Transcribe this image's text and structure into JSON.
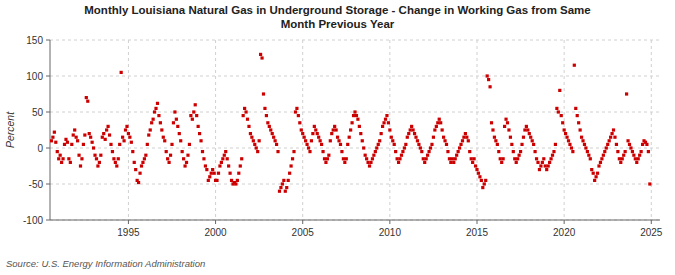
{
  "chart_data": {
    "type": "scatter",
    "title": "Monthly Louisiana Natural Gas in Underground Storage - Change in Working Gas from Same\nMonth Previous Year",
    "y_label": "Percent",
    "source": "Source: U.S. Energy Information Administration",
    "color": "#cc0000",
    "marker": "square",
    "grid": true,
    "xlim": [
      1990.5,
      2025.5
    ],
    "xticks": [
      1995,
      2000,
      2005,
      2010,
      2015,
      2020,
      2025
    ],
    "ylim": [
      -100,
      150
    ],
    "yticks": [
      -100,
      -50,
      0,
      50,
      100,
      150
    ],
    "x": [
      1990.583,
      1990.667,
      1990.75,
      1990.833,
      1990.917,
      1991.0,
      1991.083,
      1991.167,
      1991.25,
      1991.333,
      1991.417,
      1991.5,
      1991.583,
      1991.667,
      1991.75,
      1991.833,
      1991.917,
      1992.0,
      1992.083,
      1992.167,
      1992.25,
      1992.333,
      1992.417,
      1992.5,
      1992.583,
      1992.667,
      1992.75,
      1992.833,
      1992.917,
      1993.0,
      1993.083,
      1993.167,
      1993.25,
      1993.333,
      1993.417,
      1993.5,
      1993.583,
      1993.667,
      1993.75,
      1993.833,
      1993.917,
      1994.0,
      1994.083,
      1994.167,
      1994.25,
      1994.333,
      1994.417,
      1994.5,
      1994.583,
      1994.667,
      1994.75,
      1994.833,
      1994.917,
      1995.0,
      1995.083,
      1995.167,
      1995.25,
      1995.333,
      1995.417,
      1995.5,
      1995.583,
      1995.667,
      1995.75,
      1995.833,
      1995.917,
      1996.0,
      1996.083,
      1996.167,
      1996.25,
      1996.333,
      1996.417,
      1996.5,
      1996.583,
      1996.667,
      1996.75,
      1996.833,
      1996.917,
      1997.0,
      1997.083,
      1997.167,
      1997.25,
      1997.333,
      1997.417,
      1997.5,
      1997.583,
      1997.667,
      1997.75,
      1997.833,
      1997.917,
      1998.0,
      1998.083,
      1998.167,
      1998.25,
      1998.333,
      1998.417,
      1998.5,
      1998.583,
      1998.667,
      1998.75,
      1998.833,
      1998.917,
      1999.0,
      1999.083,
      1999.167,
      1999.25,
      1999.333,
      1999.417,
      1999.5,
      1999.583,
      1999.667,
      1999.75,
      1999.833,
      1999.917,
      2000.0,
      2000.083,
      2000.167,
      2000.25,
      2000.333,
      2000.417,
      2000.5,
      2000.583,
      2000.667,
      2000.75,
      2000.833,
      2000.917,
      2001.0,
      2001.083,
      2001.167,
      2001.25,
      2001.333,
      2001.417,
      2001.5,
      2001.583,
      2001.667,
      2001.75,
      2001.833,
      2001.917,
      2002.0,
      2002.083,
      2002.167,
      2002.25,
      2002.333,
      2002.417,
      2002.5,
      2002.583,
      2002.667,
      2002.75,
      2002.833,
      2002.917,
      2003.0,
      2003.083,
      2003.167,
      2003.25,
      2003.333,
      2003.417,
      2003.5,
      2003.583,
      2003.667,
      2003.75,
      2003.833,
      2003.917,
      2004.0,
      2004.083,
      2004.167,
      2004.25,
      2004.333,
      2004.417,
      2004.5,
      2004.583,
      2004.667,
      2004.75,
      2004.833,
      2004.917,
      2005.0,
      2005.083,
      2005.167,
      2005.25,
      2005.333,
      2005.417,
      2005.5,
      2005.583,
      2005.667,
      2005.75,
      2005.833,
      2005.917,
      2006.0,
      2006.083,
      2006.167,
      2006.25,
      2006.333,
      2006.417,
      2006.5,
      2006.583,
      2006.667,
      2006.75,
      2006.833,
      2006.917,
      2007.0,
      2007.083,
      2007.167,
      2007.25,
      2007.333,
      2007.417,
      2007.5,
      2007.583,
      2007.667,
      2007.75,
      2007.833,
      2007.917,
      2008.0,
      2008.083,
      2008.167,
      2008.25,
      2008.333,
      2008.417,
      2008.5,
      2008.583,
      2008.667,
      2008.75,
      2008.833,
      2008.917,
      2009.0,
      2009.083,
      2009.167,
      2009.25,
      2009.333,
      2009.417,
      2009.5,
      2009.583,
      2009.667,
      2009.75,
      2009.833,
      2009.917,
      2010.0,
      2010.083,
      2010.167,
      2010.25,
      2010.333,
      2010.417,
      2010.5,
      2010.583,
      2010.667,
      2010.75,
      2010.833,
      2010.917,
      2011.0,
      2011.083,
      2011.167,
      2011.25,
      2011.333,
      2011.417,
      2011.5,
      2011.583,
      2011.667,
      2011.75,
      2011.833,
      2011.917,
      2012.0,
      2012.083,
      2012.167,
      2012.25,
      2012.333,
      2012.417,
      2012.5,
      2012.583,
      2012.667,
      2012.75,
      2012.833,
      2012.917,
      2013.0,
      2013.083,
      2013.167,
      2013.25,
      2013.333,
      2013.417,
      2013.5,
      2013.583,
      2013.667,
      2013.75,
      2013.833,
      2013.917,
      2014.0,
      2014.083,
      2014.167,
      2014.25,
      2014.333,
      2014.417,
      2014.5,
      2014.583,
      2014.667,
      2014.75,
      2014.833,
      2014.917,
      2015.0,
      2015.083,
      2015.167,
      2015.25,
      2015.333,
      2015.417,
      2015.5,
      2015.583,
      2015.667,
      2015.75,
      2015.833,
      2015.917,
      2016.0,
      2016.083,
      2016.167,
      2016.25,
      2016.333,
      2016.417,
      2016.5,
      2016.583,
      2016.667,
      2016.75,
      2016.833,
      2016.917,
      2017.0,
      2017.083,
      2017.167,
      2017.25,
      2017.333,
      2017.417,
      2017.5,
      2017.583,
      2017.667,
      2017.75,
      2017.833,
      2017.917,
      2018.0,
      2018.083,
      2018.167,
      2018.25,
      2018.333,
      2018.417,
      2018.5,
      2018.583,
      2018.667,
      2018.75,
      2018.833,
      2018.917,
      2019.0,
      2019.083,
      2019.167,
      2019.25,
      2019.333,
      2019.417,
      2019.5,
      2019.583,
      2019.667,
      2019.75,
      2019.833,
      2019.917,
      2020.0,
      2020.083,
      2020.167,
      2020.25,
      2020.333,
      2020.417,
      2020.5,
      2020.583,
      2020.667,
      2020.75,
      2020.833,
      2020.917,
      2021.0,
      2021.083,
      2021.167,
      2021.25,
      2021.333,
      2021.417,
      2021.5,
      2021.583,
      2021.667,
      2021.75,
      2021.833,
      2021.917,
      2022.0,
      2022.083,
      2022.167,
      2022.25,
      2022.333,
      2022.417,
      2022.5,
      2022.583,
      2022.667,
      2022.75,
      2022.833,
      2022.917,
      2023.0,
      2023.083,
      2023.167,
      2023.25,
      2023.333,
      2023.417,
      2023.5,
      2023.583,
      2023.667,
      2023.75,
      2023.833,
      2023.917,
      2024.0,
      2024.083,
      2024.167,
      2024.25,
      2024.333,
      2024.417,
      2024.5,
      2024.583,
      2024.667,
      2024.75,
      2024.833,
      2024.917
    ],
    "values": [
      10,
      15,
      22,
      8,
      -5,
      -15,
      -10,
      -20,
      -15,
      5,
      12,
      8,
      -15,
      -20,
      5,
      18,
      25,
      15,
      10,
      -10,
      -25,
      -15,
      5,
      18,
      70,
      65,
      20,
      15,
      8,
      0,
      -10,
      -15,
      -25,
      -20,
      -10,
      15,
      20,
      12,
      25,
      30,
      18,
      5,
      -5,
      -15,
      -20,
      -25,
      -15,
      5,
      105,
      15,
      10,
      25,
      30,
      20,
      15,
      8,
      -5,
      -20,
      -30,
      -45,
      -48,
      -35,
      -25,
      -20,
      -15,
      -10,
      5,
      18,
      25,
      35,
      40,
      50,
      55,
      62,
      45,
      35,
      25,
      15,
      10,
      -5,
      -15,
      -20,
      -10,
      5,
      35,
      50,
      40,
      30,
      20,
      10,
      -5,
      -15,
      -25,
      -20,
      -10,
      5,
      45,
      40,
      50,
      60,
      45,
      30,
      20,
      10,
      -5,
      -15,
      -25,
      -30,
      -45,
      -40,
      -35,
      -30,
      -35,
      -45,
      -45,
      -35,
      -25,
      -20,
      -15,
      -10,
      -5,
      -15,
      -25,
      -35,
      -45,
      -50,
      -48,
      -50,
      -45,
      -35,
      -25,
      -15,
      45,
      55,
      50,
      40,
      30,
      20,
      15,
      10,
      5,
      0,
      -5,
      10,
      130,
      125,
      75,
      55,
      45,
      35,
      30,
      25,
      20,
      15,
      10,
      5,
      -5,
      -60,
      -55,
      -50,
      -45,
      -60,
      -55,
      -45,
      -35,
      -25,
      -15,
      -5,
      50,
      55,
      45,
      35,
      25,
      20,
      15,
      10,
      5,
      0,
      -5,
      10,
      20,
      30,
      25,
      20,
      15,
      10,
      5,
      -5,
      -15,
      -20,
      -15,
      -10,
      10,
      20,
      25,
      30,
      25,
      15,
      10,
      5,
      -5,
      -15,
      -20,
      -15,
      5,
      15,
      25,
      35,
      45,
      50,
      45,
      40,
      30,
      20,
      10,
      0,
      -10,
      -15,
      -20,
      -25,
      -20,
      -15,
      -10,
      -5,
      0,
      5,
      10,
      20,
      30,
      35,
      40,
      45,
      35,
      25,
      15,
      10,
      5,
      -5,
      -15,
      -20,
      -15,
      -10,
      -5,
      0,
      5,
      15,
      20,
      25,
      30,
      25,
      20,
      15,
      10,
      5,
      0,
      -5,
      -15,
      -20,
      -15,
      -10,
      -5,
      0,
      5,
      15,
      25,
      30,
      35,
      40,
      35,
      25,
      15,
      10,
      5,
      -5,
      -15,
      -20,
      -15,
      -20,
      -15,
      -10,
      -5,
      0,
      5,
      10,
      15,
      20,
      15,
      10,
      -5,
      -15,
      -20,
      -15,
      -25,
      -30,
      -35,
      -40,
      -45,
      -55,
      -50,
      -45,
      100,
      95,
      85,
      35,
      25,
      15,
      10,
      5,
      -5,
      -15,
      -20,
      -15,
      30,
      40,
      35,
      25,
      15,
      5,
      -5,
      -15,
      -20,
      -15,
      -10,
      -5,
      5,
      15,
      25,
      30,
      25,
      20,
      15,
      10,
      5,
      -5,
      -15,
      -20,
      -30,
      -25,
      -20,
      -15,
      -25,
      -30,
      -25,
      -20,
      -15,
      -10,
      -5,
      5,
      55,
      50,
      80,
      45,
      35,
      25,
      20,
      15,
      10,
      5,
      0,
      -5,
      115,
      55,
      45,
      35,
      25,
      15,
      10,
      5,
      0,
      -5,
      -10,
      -15,
      -30,
      -35,
      -45,
      -40,
      -35,
      -25,
      -20,
      -15,
      -10,
      -5,
      0,
      5,
      10,
      15,
      20,
      25,
      15,
      5,
      -5,
      -15,
      -20,
      -15,
      -10,
      -5,
      75,
      10,
      5,
      0,
      -5,
      -10,
      -15,
      -20,
      -15,
      -10,
      -5,
      5,
      10,
      8,
      5,
      -5,
      -50
    ]
  }
}
